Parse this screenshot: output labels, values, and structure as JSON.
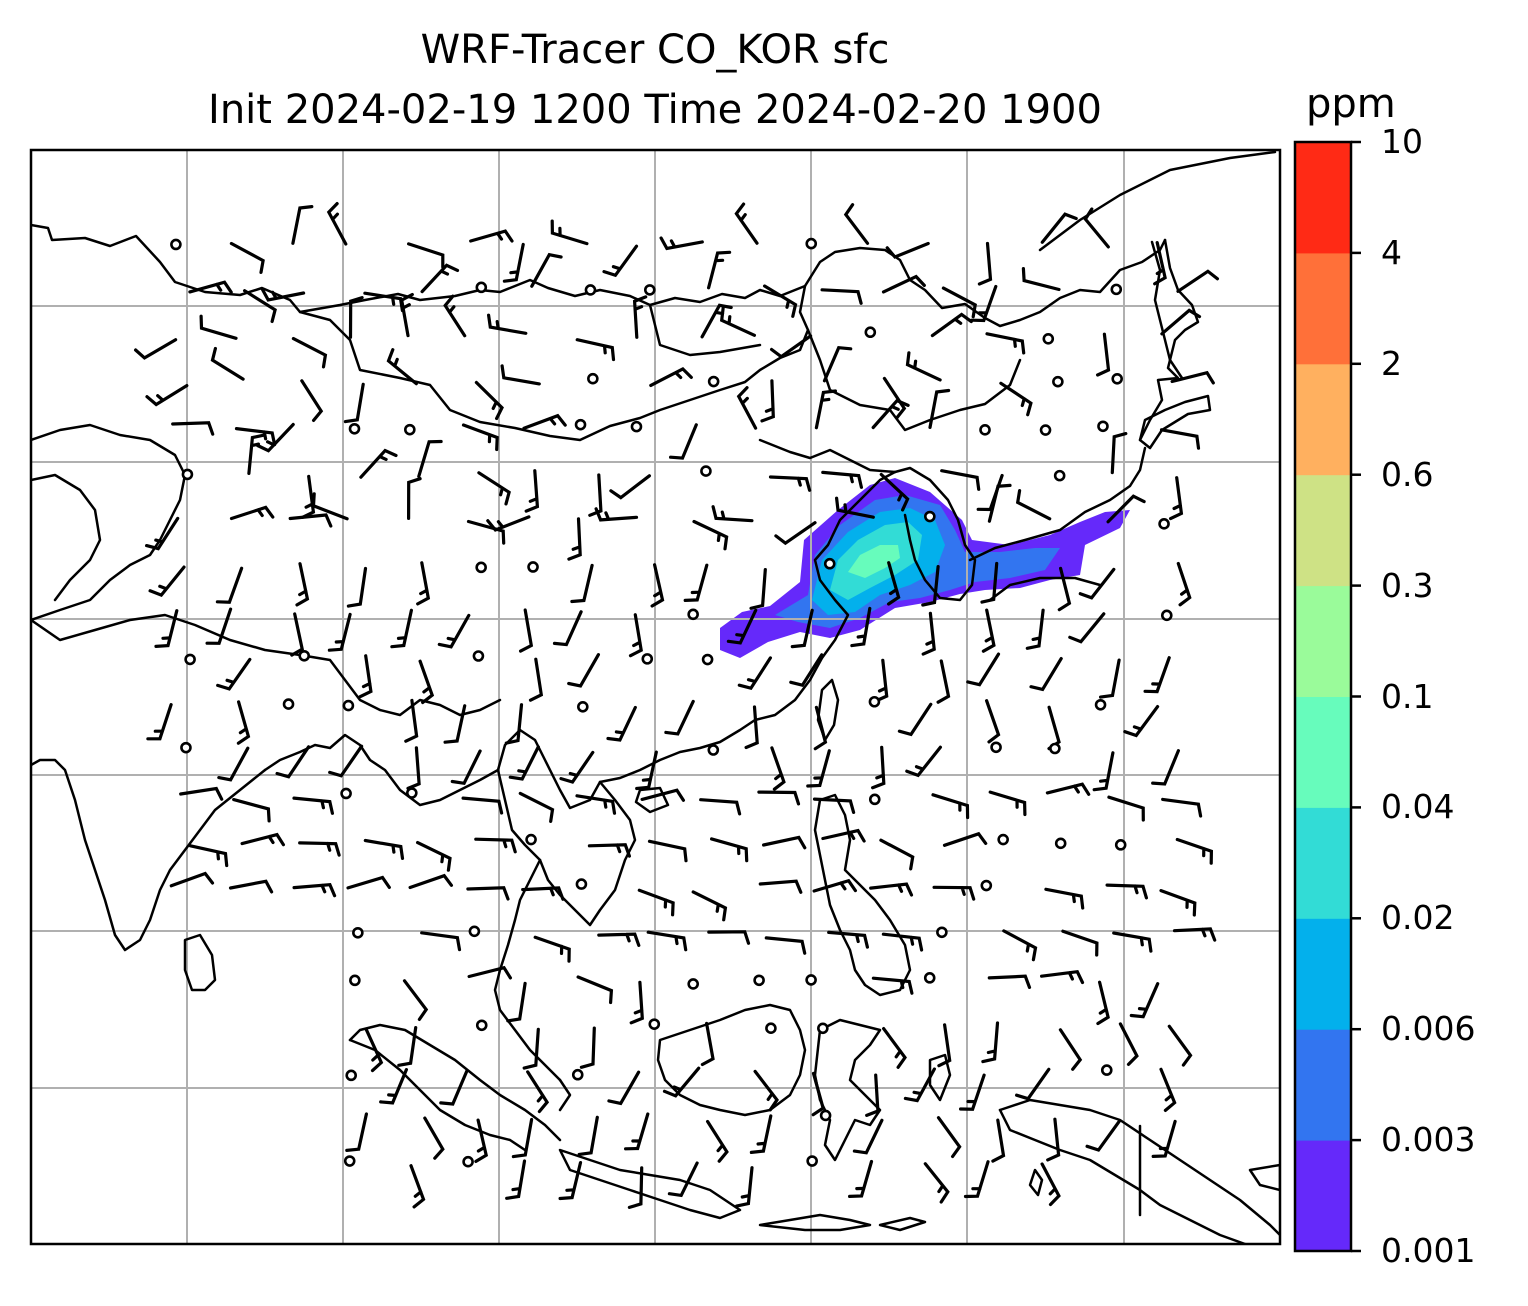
{
  "title_line1": "WRF-Tracer CO_KOR sfc",
  "title_line2": "Init 2024-02-19 1200 Time 2024-02-20 1900",
  "colorbar": {
    "unit": "ppm",
    "levels": [
      "0.001",
      "0.003",
      "0.006",
      "0.02",
      "0.04",
      "0.1",
      "0.3",
      "0.6",
      "2",
      "4",
      "10"
    ],
    "colors": [
      "#6529FA",
      "#3275F0",
      "#03B0EC",
      "#32DCD6",
      "#67FCBC",
      "#9AFB9A",
      "#CEE285",
      "#FFB05F",
      "#FF7039",
      "#FF2A15"
    ]
  },
  "map": {
    "region": "East and Southeast Asia",
    "field": "surface CO tracer concentration with wind barbs",
    "gridlines": true,
    "coastline_color": "#000000",
    "gridline_color": "#b0b0b0"
  }
}
